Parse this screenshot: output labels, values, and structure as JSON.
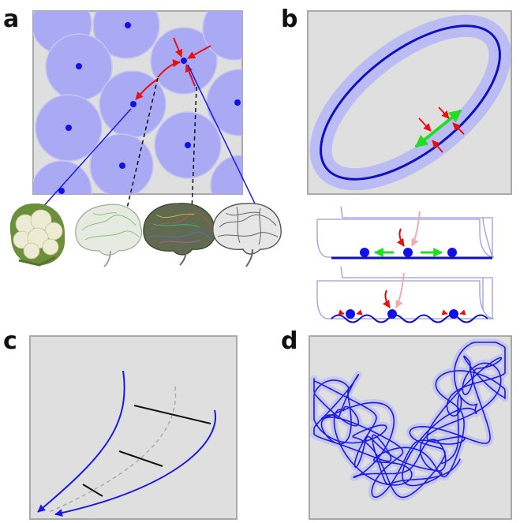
{
  "panels": {
    "a": {
      "letter": "a"
    },
    "b": {
      "letter": "b"
    },
    "c": {
      "letter": "c"
    },
    "d": {
      "letter": "d"
    }
  },
  "colors": {
    "panel_bg": "#dfdfdf",
    "panel_border": "#a9a9a9",
    "disc_fill": "#a9a9f4",
    "point": "#1010e8",
    "line_blue": "#1a1ae0",
    "arrow_red": "#e81010",
    "arrow_green": "#22dd22",
    "band_light": "#bcbcf4"
  },
  "icons": [
    "cauliflower-icon",
    "brain-green-icon",
    "brain-colorful-icon",
    "brain-gray-icon"
  ]
}
